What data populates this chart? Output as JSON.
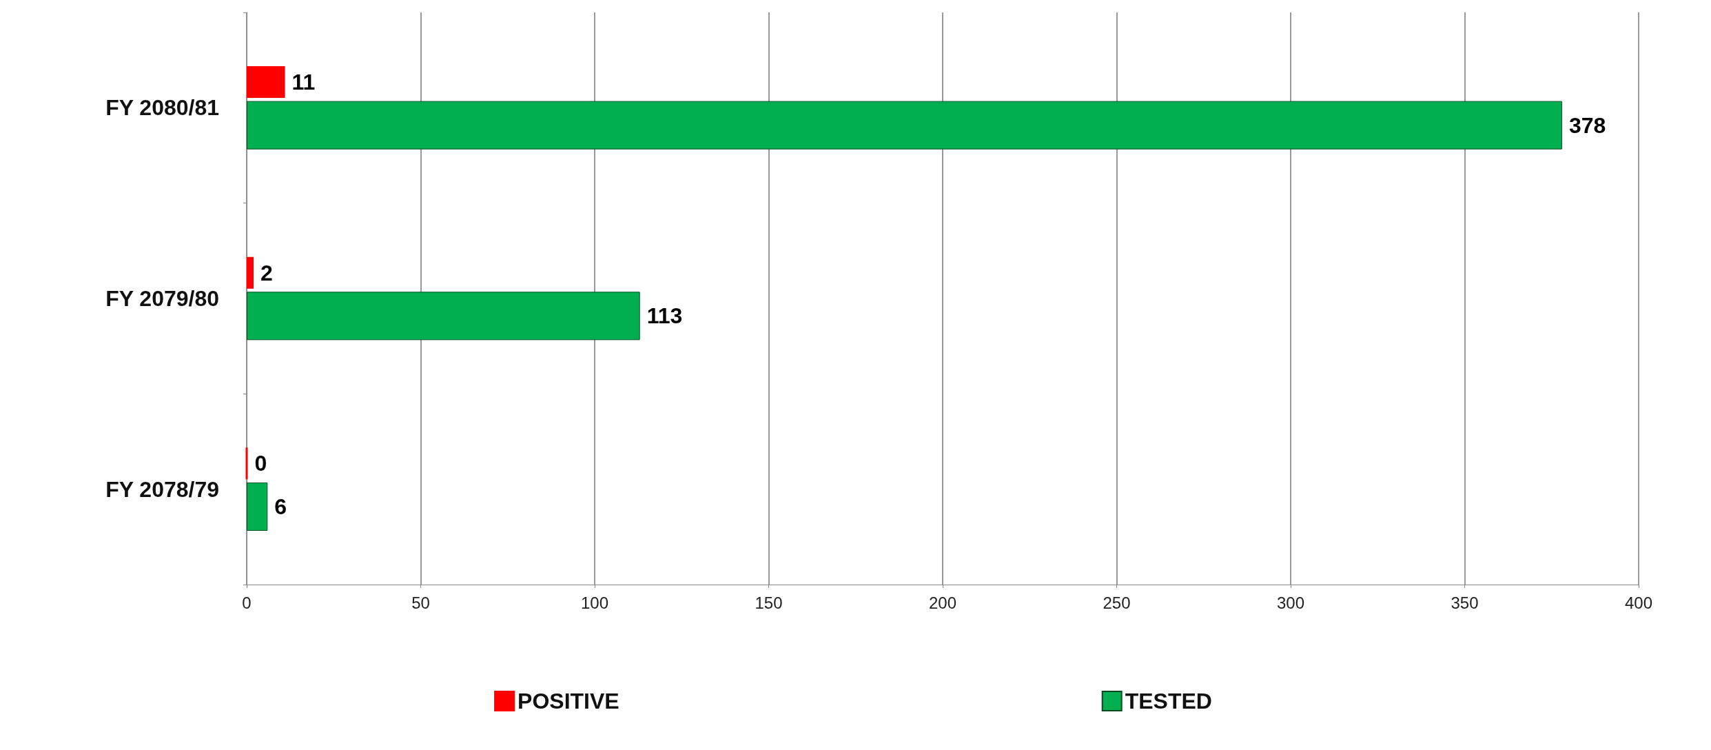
{
  "chart_data": {
    "type": "bar",
    "orientation": "horizontal",
    "categories": [
      "FY 2080/81",
      "FY 2079/80",
      "FY 2078/79"
    ],
    "series": [
      {
        "name": "POSITIVE",
        "color": "#ff0000",
        "values": [
          11,
          2,
          0
        ]
      },
      {
        "name": "TESTED",
        "color": "#00b050",
        "values": [
          378,
          113,
          6
        ]
      }
    ],
    "xlim": [
      0,
      400
    ],
    "xticks": [
      0,
      50,
      100,
      150,
      200,
      250,
      300,
      350,
      400
    ],
    "grid": "x",
    "legend": "bottom",
    "data_labels": true
  }
}
